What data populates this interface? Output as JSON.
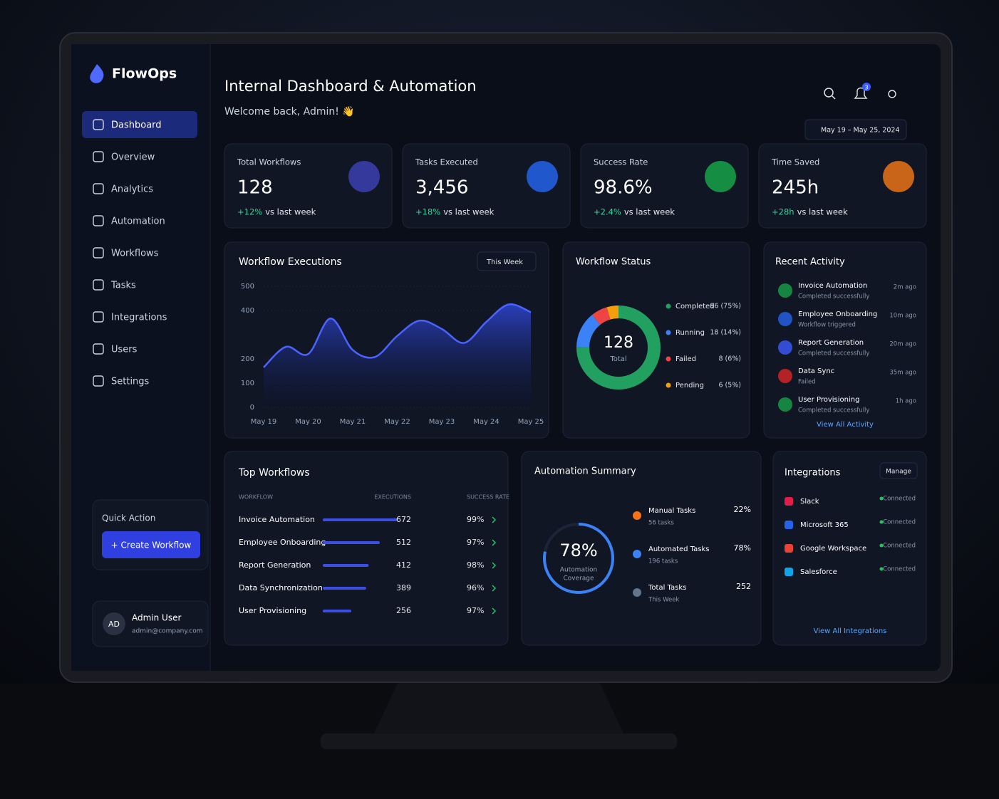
{
  "sidebar": {
    "brand": "FlowOps",
    "nav": [
      "Dashboard",
      "Overview",
      "Analytics",
      "Automation",
      "Workflows",
      "Tasks",
      "Integrations",
      "Users",
      "Settings"
    ],
    "quick_action": {
      "title": "Quick Action",
      "button": "+ Create Workflow"
    },
    "user": {
      "initials": "AD",
      "name": "Admin User",
      "email": "admin@company.com"
    }
  },
  "header": {
    "title": "Internal Dashboard & Automation",
    "welcome": "Welcome back, Admin! 👋",
    "notifications": "3",
    "date_range": "May 19 – May 25, 2024"
  },
  "kpis": [
    {
      "label": "Total Workflows",
      "value": "128",
      "change": "+12%",
      "suffix": "vs last week"
    },
    {
      "label": "Tasks Executed",
      "value": "3,456",
      "change": "+18%",
      "suffix": "vs last week"
    },
    {
      "label": "Success Rate",
      "value": "98.6%",
      "change": "+2.4%",
      "suffix": "vs last week"
    },
    {
      "label": "Time Saved",
      "value": "245h",
      "change": "+28h",
      "suffix": "vs last week"
    }
  ],
  "executions": {
    "type": "area",
    "title": "Workflow Executions",
    "filter": "This Week",
    "categories": [
      "May 19",
      null,
      "May 20",
      null,
      "May 21",
      null,
      "May 22",
      null,
      "May 23",
      null,
      "May 24",
      null,
      "May 25"
    ],
    "values": [
      165,
      250,
      220,
      367,
      237,
      208,
      295,
      358,
      324,
      266,
      353,
      425,
      393
    ],
    "color": "#4a63ff",
    "ylim": [
      0,
      500
    ],
    "yticks": [
      0,
      100,
      200,
      400,
      500
    ]
  },
  "status": {
    "type": "donut",
    "title": "Workflow Status",
    "center_value": "128",
    "center_label": "Total",
    "series": [
      {
        "name": "Completed",
        "color": "#22a060",
        "value": 96,
        "value_label": "96 (75%)"
      },
      {
        "name": "Running",
        "color": "#3b82f6",
        "value": 18,
        "value_label": "18 (14%)"
      },
      {
        "name": "Failed",
        "color": "#ef4444",
        "value": 8,
        "value_label": "8 (6%)"
      },
      {
        "name": "Pending",
        "color": "#f59e0b",
        "value": 6,
        "value_label": "6 (5%)"
      }
    ]
  },
  "recent_activity": {
    "title": "Recent Activity",
    "items": [
      {
        "title": "Invoice Automation",
        "status": "Completed successfully",
        "time": "2m ago"
      },
      {
        "title": "Employee Onboarding",
        "status": "Workflow triggered",
        "time": "10m ago"
      },
      {
        "title": "Report Generation",
        "status": "Completed successfully",
        "time": "20m ago"
      },
      {
        "title": "Data Sync",
        "status": "Failed",
        "time": "35m ago"
      },
      {
        "title": "User Provisioning",
        "status": "Completed successfully",
        "time": "1h ago"
      }
    ],
    "link": "View All Activity"
  },
  "top_workflows": {
    "title": "Top Workflows",
    "columns": [
      "WORKFLOW",
      "EXECUTIONS",
      "SUCCESS RATE"
    ],
    "rows": [
      {
        "name": "Invoice Automation",
        "executions": 672,
        "success_rate": "99%"
      },
      {
        "name": "Employee Onboarding",
        "executions": 512,
        "success_rate": "97%"
      },
      {
        "name": "Report Generation",
        "executions": 412,
        "success_rate": "98%"
      },
      {
        "name": "Data Synchronization",
        "executions": 389,
        "success_rate": "96%"
      },
      {
        "name": "User Provisioning",
        "executions": 256,
        "success_rate": "97%"
      }
    ]
  },
  "automation_summary": {
    "title": "Automation Summary",
    "coverage": {
      "value": 78,
      "label": "78%"
    },
    "coverage_caption": [
      "Automation",
      "Coverage"
    ],
    "items": [
      {
        "name": "Manual Tasks",
        "detail": "56 tasks",
        "value": "22%"
      },
      {
        "name": "Automated Tasks",
        "detail": "196 tasks",
        "value": "78%"
      },
      {
        "name": "Total Tasks",
        "detail": "This Week",
        "value": "252"
      }
    ]
  },
  "integrations": {
    "title": "Integrations",
    "manage": "Manage",
    "items": [
      {
        "name": "Slack",
        "status": "Connected"
      },
      {
        "name": "Microsoft 365",
        "status": "Connected"
      },
      {
        "name": "Google Workspace",
        "status": "Connected"
      },
      {
        "name": "Salesforce",
        "status": "Connected"
      }
    ],
    "link": "View All Integrations"
  }
}
